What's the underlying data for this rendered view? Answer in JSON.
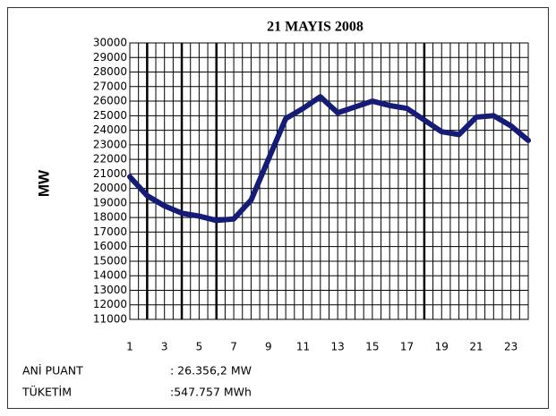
{
  "chart_data": {
    "type": "line",
    "title": "21 MAYIS 2008",
    "y_label": "MW",
    "x": [
      1,
      2,
      3,
      4,
      5,
      6,
      7,
      8,
      9,
      10,
      11,
      12,
      13,
      14,
      15,
      16,
      17,
      18,
      19,
      20,
      21,
      22,
      23,
      24
    ],
    "series": [
      {
        "name": "MW",
        "color": "#141c78",
        "values": [
          20800,
          19500,
          18800,
          18300,
          18100,
          17800,
          17900,
          19200,
          22000,
          24800,
          25500,
          26300,
          25200,
          25600,
          26000,
          25700,
          25500,
          24700,
          23900,
          23700,
          24900,
          25000,
          24300,
          23300
        ]
      }
    ],
    "xlim": [
      1,
      24
    ],
    "xticks": [
      1,
      3,
      5,
      7,
      9,
      11,
      13,
      15,
      17,
      19,
      21,
      23
    ],
    "ylim": [
      11000,
      30000
    ],
    "yticks": [
      11000,
      12000,
      13000,
      14000,
      15000,
      16000,
      17000,
      18000,
      19000,
      20000,
      21000,
      22000,
      23000,
      24000,
      25000,
      26000,
      27000,
      28000,
      29000,
      30000
    ],
    "grid": true,
    "xgrid_step": 0.5,
    "xmajor": [
      2,
      4,
      6,
      18
    ],
    "legend": false,
    "footer": [
      {
        "label": "ANİ PUANT",
        "value": ": 26.356,2 MW"
      },
      {
        "label": "TÜKETİM",
        "value": ":547.757  MWh"
      }
    ]
  }
}
